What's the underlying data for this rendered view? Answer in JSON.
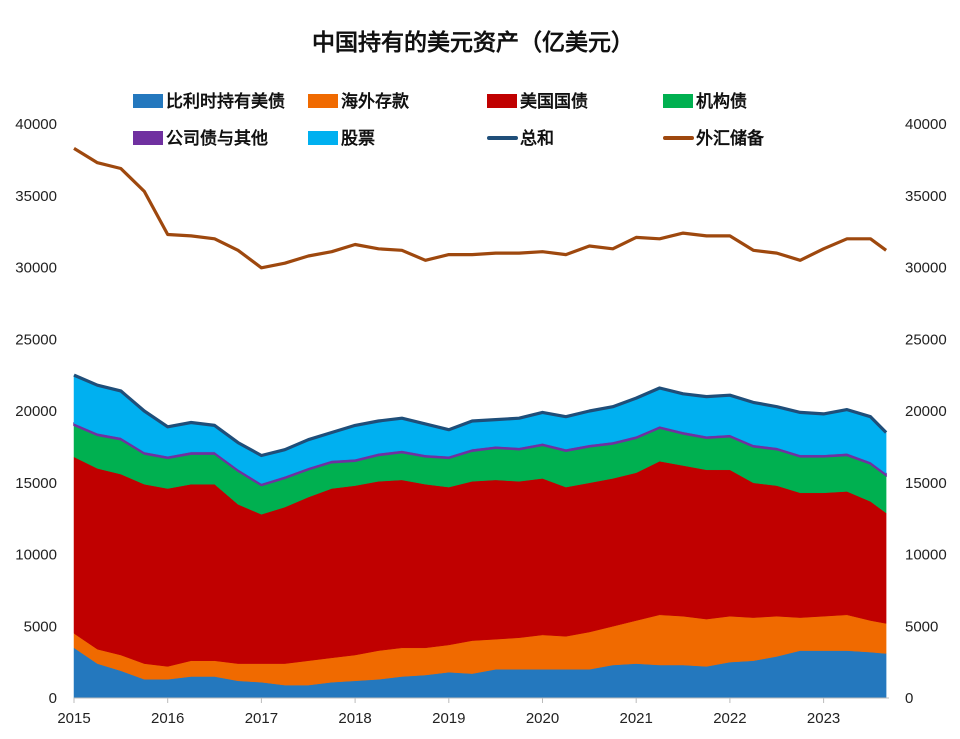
{
  "chart_data": {
    "type": "area",
    "stacked": true,
    "title": "中国持有的美元资产（亿美元）",
    "xlabel": "",
    "ylabel": "",
    "ylim": [
      0,
      40000
    ],
    "y2lim": [
      0,
      40000
    ],
    "yticks": [
      "0",
      "5000",
      "10000",
      "15000",
      "20000",
      "25000",
      "30000",
      "35000",
      "40000"
    ],
    "xticks": [
      "2015",
      "2016",
      "2017",
      "2018",
      "2019",
      "2020",
      "2021",
      "2022",
      "2023"
    ],
    "grid": false,
    "legend_position": "top",
    "x": [
      "2015-01",
      "2015-04",
      "2015-07",
      "2015-10",
      "2016-01",
      "2016-04",
      "2016-07",
      "2016-10",
      "2017-01",
      "2017-04",
      "2017-07",
      "2017-10",
      "2018-01",
      "2018-04",
      "2018-07",
      "2018-10",
      "2019-01",
      "2019-04",
      "2019-07",
      "2019-10",
      "2020-01",
      "2020-04",
      "2020-07",
      "2020-10",
      "2021-01",
      "2021-04",
      "2021-07",
      "2021-10",
      "2022-01",
      "2022-04",
      "2022-07",
      "2022-10",
      "2023-01",
      "2023-04",
      "2023-07",
      "2023-09"
    ],
    "series": [
      {
        "name": "比利时持有美债",
        "kind": "area",
        "color": "#2478BE",
        "values": [
          3500,
          2400,
          1900,
          1300,
          1300,
          1500,
          1500,
          1200,
          1100,
          900,
          900,
          1100,
          1200,
          1300,
          1500,
          1600,
          1800,
          1700,
          2000,
          2000,
          2000,
          2000,
          2000,
          2300,
          2400,
          2300,
          2300,
          2200,
          2500,
          2600,
          2900,
          3300,
          3300,
          3300,
          3200,
          3100
        ]
      },
      {
        "name": "海外存款",
        "kind": "area",
        "color": "#F06A00",
        "values": [
          1000,
          1000,
          1100,
          1100,
          900,
          1100,
          1100,
          1200,
          1300,
          1500,
          1700,
          1700,
          1800,
          2000,
          2000,
          1900,
          1900,
          2300,
          2100,
          2200,
          2400,
          2300,
          2600,
          2700,
          3000,
          3500,
          3400,
          3300,
          3200,
          3000,
          2800,
          2300,
          2400,
          2500,
          2200,
          2100
        ]
      },
      {
        "name": "美国国债",
        "kind": "area",
        "color": "#C00000",
        "values": [
          12300,
          12600,
          12600,
          12500,
          12400,
          12300,
          12300,
          11100,
          10400,
          10900,
          11400,
          11800,
          11800,
          11800,
          11700,
          11400,
          11000,
          11100,
          11100,
          10900,
          10900,
          10400,
          10400,
          10300,
          10300,
          10700,
          10500,
          10400,
          10200,
          9400,
          9100,
          8700,
          8600,
          8600,
          8300,
          7700
        ]
      },
      {
        "name": "机构债",
        "kind": "area",
        "color": "#00B050",
        "values": [
          2200,
          2300,
          2400,
          2100,
          2100,
          2100,
          2100,
          2300,
          2000,
          2000,
          1900,
          1800,
          1700,
          1800,
          1900,
          1900,
          2000,
          2100,
          2200,
          2200,
          2300,
          2500,
          2500,
          2400,
          2400,
          2300,
          2200,
          2200,
          2300,
          2500,
          2500,
          2500,
          2500,
          2500,
          2600,
          2600
        ]
      },
      {
        "name": "公司债与其他",
        "kind": "area",
        "color": "#7030A0",
        "values": [
          150,
          150,
          150,
          150,
          150,
          150,
          150,
          150,
          150,
          150,
          150,
          150,
          150,
          150,
          150,
          150,
          150,
          150,
          150,
          150,
          150,
          150,
          150,
          150,
          150,
          150,
          150,
          150,
          150,
          150,
          150,
          150,
          150,
          150,
          150,
          150
        ]
      },
      {
        "name": "股票",
        "kind": "area",
        "color": "#00B0F0",
        "values": [
          3350,
          3350,
          3250,
          2850,
          2050,
          2050,
          1850,
          1850,
          1950,
          1850,
          1950,
          1950,
          2350,
          2250,
          2250,
          2150,
          1850,
          1950,
          1850,
          2050,
          2150,
          2250,
          2350,
          2450,
          2650,
          2650,
          2650,
          2750,
          2750,
          2950,
          2850,
          2950,
          2850,
          3050,
          3150,
          2850
        ]
      },
      {
        "name": "总和",
        "kind": "line",
        "color": "#1F4E79",
        "values": [
          22500,
          21800,
          21400,
          20000,
          18900,
          19200,
          19000,
          17800,
          16900,
          17300,
          18000,
          18500,
          19000,
          19300,
          19500,
          19100,
          18700,
          19300,
          19400,
          19500,
          19900,
          19600,
          20000,
          20300,
          20900,
          21600,
          21200,
          21000,
          21100,
          20600,
          20300,
          19900,
          19800,
          20100,
          19600,
          18500
        ]
      },
      {
        "name": "外汇储备",
        "kind": "line",
        "color": "#9E480E",
        "values": [
          38300,
          37300,
          36900,
          35300,
          32300,
          32200,
          32000,
          31200,
          29980,
          30300,
          30800,
          31100,
          31600,
          31300,
          31200,
          30500,
          30900,
          30900,
          31000,
          31000,
          31100,
          30900,
          31500,
          31300,
          32100,
          32000,
          32400,
          32200,
          32200,
          31200,
          31000,
          30500,
          31300,
          32000,
          32000,
          31200
        ]
      }
    ]
  }
}
